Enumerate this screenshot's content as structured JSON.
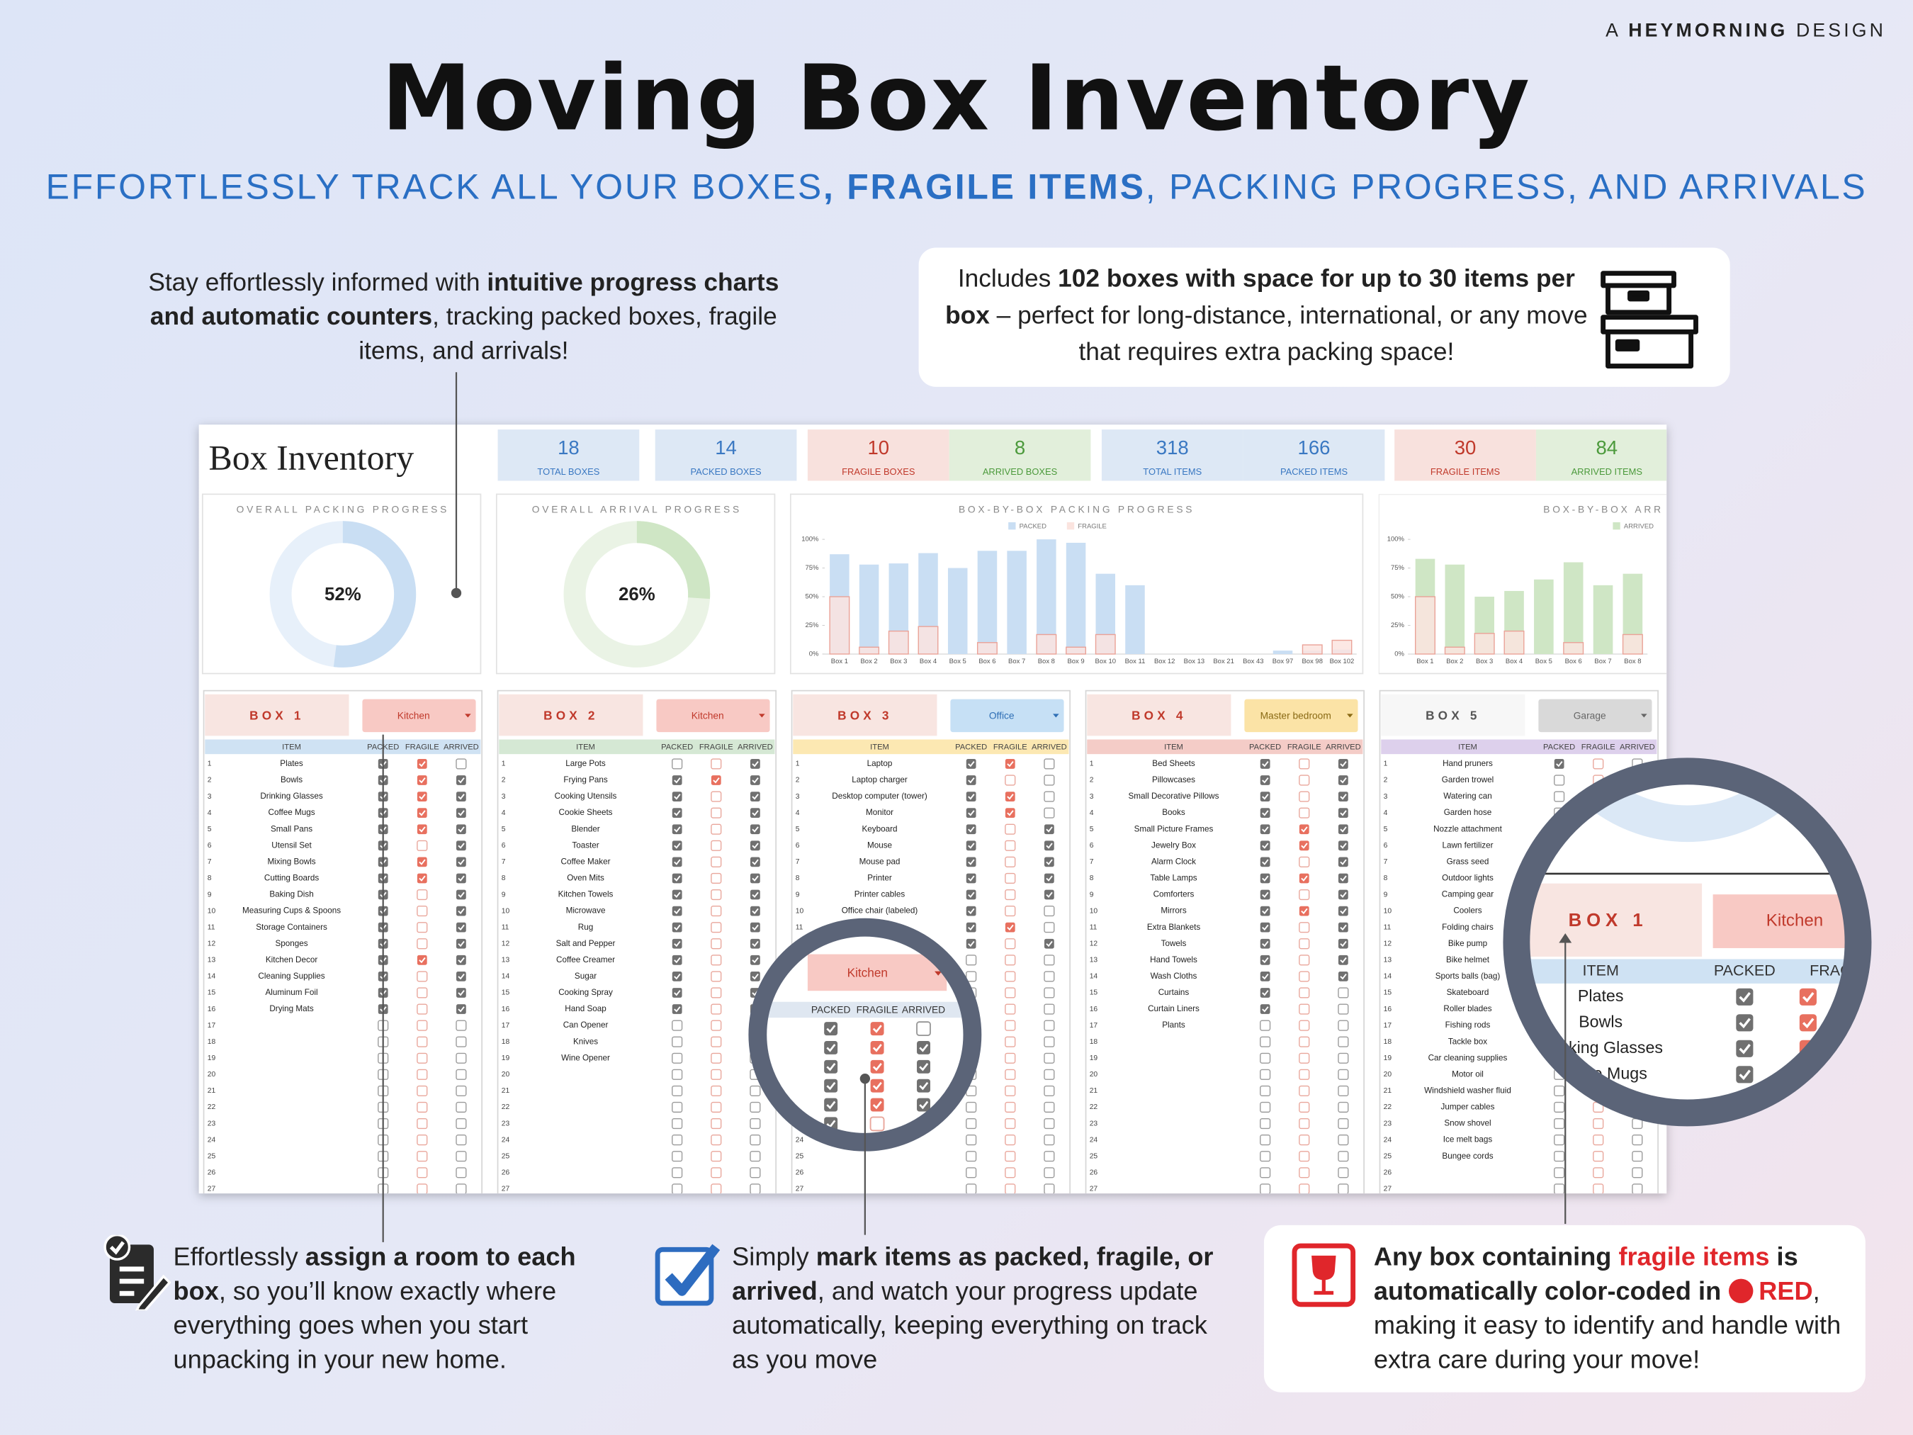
{
  "header": {
    "brand": [
      {
        "text": "A ",
        "style": "normal"
      },
      {
        "text": "HEYMORNING",
        "style": "bold"
      },
      {
        "text": " DESIGN",
        "style": "normal"
      }
    ],
    "title": "Moving Box Inventory",
    "subtitle": [
      {
        "text": "EFFORTLESSLY TRACK ALL YOUR BOXES",
        "style": "normal"
      },
      {
        "text": ", FRAGILE ITEMS",
        "style": "bold"
      },
      {
        "text": ", PACKING PROGRESS, AND ARRIVALS",
        "style": "normal"
      }
    ]
  },
  "callouts": [
    {
      "segments": [
        {
          "text": "Stay effortlessly informed with ",
          "style": "normal"
        },
        {
          "text": "intuitive progress charts and automatic counters",
          "style": "bold"
        },
        {
          "text": ", tracking packed boxes, fragile items, and arrivals!",
          "style": "normal"
        }
      ]
    },
    {
      "segments": [
        {
          "text": "Includes ",
          "style": "normal"
        },
        {
          "text": "102 boxes with space for up to 30 items per box",
          "style": "bold"
        },
        {
          "text": " – perfect for long-distance, international, or any move that requires extra packing space!",
          "style": "normal"
        }
      ]
    },
    {
      "segments": [
        {
          "text": "Effortlessly ",
          "style": "normal"
        },
        {
          "text": "assign a room to each box",
          "style": "bold"
        },
        {
          "text": ", so you’ll know exactly where everything goes when you start unpacking in your new home.",
          "style": "normal"
        }
      ]
    },
    {
      "segments": [
        {
          "text": "Simply ",
          "style": "normal"
        },
        {
          "text": "mark items as packed, fragile, or arrived",
          "style": "bold"
        },
        {
          "text": ", and watch your progress update automatically, keeping everything on track as you move",
          "style": "normal"
        }
      ]
    },
    {
      "segments": [
        {
          "text": "Any box containing ",
          "style": "bold"
        },
        {
          "text": "fragile items",
          "style": "red"
        },
        {
          "text": " is automatically color-coded in ",
          "style": "bold"
        },
        {
          "text": "RED",
          "style": "red-dot"
        },
        {
          "text": ", making it easy to identify and handle with extra care during your move!",
          "style": "normal"
        }
      ]
    }
  ],
  "sheet": {
    "title": "Box Inventory",
    "stats": [
      {
        "value": 18,
        "label": "TOTAL BOXES",
        "color": "#3a78c2",
        "bg": "#dde8f5"
      },
      {
        "value": 14,
        "label": "PACKED BOXES",
        "color": "#3a78c2",
        "bg": "#dde8f5"
      },
      {
        "value": 10,
        "label": "FRAGILE BOXES",
        "color": "#c0392b",
        "bg": "#f8e1dd"
      },
      {
        "value": 8,
        "label": "ARRIVED BOXES",
        "color": "#4c9a3c",
        "bg": "#e2efdb"
      },
      {
        "value": 318,
        "label": "TOTAL ITEMS",
        "color": "#3a78c2",
        "bg": "#dde8f5"
      },
      {
        "value": 166,
        "label": "PACKED ITEMS",
        "color": "#3a78c2",
        "bg": "#dde8f5"
      },
      {
        "value": 30,
        "label": "FRAGILE ITEMS",
        "color": "#c0392b",
        "bg": "#f8e1dd"
      },
      {
        "value": 84,
        "label": "ARRIVED ITEMS",
        "color": "#4c9a3c",
        "bg": "#e2efdb"
      }
    ],
    "progress": [
      {
        "type": "donut",
        "title": "OVERALL PACKING PROGRESS",
        "value": 52,
        "value_label": "52%",
        "color": "#c9def3",
        "track": "#e7f0fa"
      },
      {
        "type": "donut",
        "title": "OVERALL ARRIVAL PROGRESS",
        "value": 26,
        "value_label": "26%",
        "color": "#cfe6c5",
        "track": "#eaf3e5"
      }
    ],
    "charts": [
      {
        "type": "bar",
        "title": "BOX-BY-BOX PACKING PROGRESS",
        "categories": [
          "Box 1",
          "Box 2",
          "Box 3",
          "Box 4",
          "Box 5",
          "Box 6",
          "Box 7",
          "Box 8",
          "Box 9",
          "Box 10",
          "Box 11",
          "Box 12",
          "Box 13",
          "Box 21",
          "Box 43",
          "Box 97",
          "Box 98",
          "Box 102"
        ],
        "series": [
          {
            "name": "PACKED",
            "color": "#c9def3",
            "values": [
              87,
              78,
              79,
              88,
              75,
              90,
              90,
              100,
              97,
              70,
              60,
              0,
              0,
              0,
              0,
              3,
              3,
              4
            ]
          },
          {
            "name": "FRAGILE",
            "color": "#fbe4df",
            "values": [
              50,
              6,
              20,
              24,
              0,
              10,
              0,
              17,
              6,
              17,
              0,
              0,
              0,
              0,
              0,
              0,
              8,
              12
            ]
          }
        ],
        "ylim": [
          0,
          100
        ],
        "yticks": [
          {
            "value": 0,
            "label": "0%"
          },
          {
            "value": 25,
            "label": "25%"
          },
          {
            "value": 50,
            "label": "50%"
          },
          {
            "value": 75,
            "label": "75%"
          },
          {
            "value": 100,
            "label": "100%"
          }
        ]
      },
      {
        "type": "bar",
        "title": "BOX-BY-BOX ARR",
        "categories": [
          "Box 1",
          "Box 2",
          "Box 3",
          "Box 4",
          "Box 5",
          "Box 6",
          "Box 7",
          "Box 8"
        ],
        "series": [
          {
            "name": "ARRIVED",
            "color": "#cfe6c5",
            "values": [
              83,
              78,
              50,
              55,
              65,
              80,
              60,
              70
            ]
          },
          {
            "color": "#fbe4df",
            "values": [
              50,
              6,
              18,
              20,
              0,
              10,
              0,
              17
            ]
          }
        ],
        "ylim": [
          0,
          100
        ],
        "yticks": [
          {
            "value": 0,
            "label": "0%"
          },
          {
            "value": 25,
            "label": "25%"
          },
          {
            "value": 50,
            "label": "50%"
          },
          {
            "value": 75,
            "label": "75%"
          },
          {
            "value": 100,
            "label": "100%"
          }
        ]
      }
    ],
    "columns": [
      "ITEM",
      "PACKED",
      "FRAGILE",
      "ARRIVED"
    ],
    "row_numbers": [
      1,
      2,
      3,
      4,
      5,
      6,
      7,
      8,
      9,
      10,
      11,
      12,
      13,
      14,
      15,
      16,
      17,
      18,
      19,
      20,
      21,
      22,
      23,
      24,
      25,
      26,
      27
    ],
    "boxes": [
      {
        "title": "BOX 1",
        "room": "Kitchen",
        "title_color": "#c0392b",
        "title_bg": "#f8e5e1",
        "room_bg": "#f8c9c4",
        "room_color": "#c0392b",
        "header_bg": "#cfe2f3",
        "items": [
          "Plates",
          "Bowls",
          "Drinking Glasses",
          "Coffee Mugs",
          "Small Pans",
          "Utensil Set",
          "Mixing Bowls",
          "Cutting Boards",
          "Baking Dish",
          "Measuring Cups & Spoons",
          "Storage Containers",
          "Sponges",
          "Kitchen Decor",
          "Cleaning Supplies",
          "Aluminum Foil",
          "Drying Mats"
        ],
        "packed": [
          true,
          true,
          true,
          true,
          true,
          true,
          true,
          true,
          true,
          true,
          true,
          true,
          true,
          true,
          true,
          true,
          false,
          false,
          false,
          false,
          false,
          false,
          false,
          false,
          false,
          false,
          false
        ],
        "fragile": [
          true,
          true,
          true,
          true,
          true,
          false,
          true,
          true,
          false,
          false,
          false,
          false,
          true,
          false,
          false,
          false,
          false,
          false,
          false,
          false,
          false,
          false,
          false,
          false,
          false,
          false,
          false
        ],
        "arrived": [
          false,
          true,
          true,
          true,
          true,
          true,
          true,
          true,
          true,
          true,
          true,
          true,
          true,
          true,
          true,
          true,
          false,
          false,
          false,
          false,
          false,
          false,
          false,
          false,
          false,
          false,
          false
        ]
      },
      {
        "title": "BOX 2",
        "room": "Kitchen",
        "title_color": "#c0392b",
        "title_bg": "#f8e5e1",
        "room_bg": "#f8c9c4",
        "room_color": "#c0392b",
        "header_bg": "#d5e8d4",
        "items": [
          "Large Pots",
          "Frying Pans",
          "Cooking Utensils",
          "Cookie Sheets",
          "Blender",
          "Toaster",
          "Coffee Maker",
          "Oven Mits",
          "Kitchen Towels",
          "Microwave",
          "Rug",
          "Salt and Pepper",
          "Coffee Creamer",
          "Sugar",
          "Cooking Spray",
          "Hand Soap",
          "Can Opener",
          "Knives",
          "Wine Opener"
        ],
        "packed": [
          false,
          true,
          true,
          true,
          true,
          true,
          true,
          true,
          true,
          true,
          true,
          true,
          true,
          true,
          true,
          true,
          false,
          false,
          false,
          false,
          false,
          false,
          false,
          false,
          false,
          false,
          false
        ],
        "fragile": [
          false,
          true,
          false,
          false,
          false,
          false,
          false,
          false,
          false,
          false,
          false,
          false,
          false,
          false,
          false,
          false,
          false,
          false,
          false,
          false,
          false,
          false,
          false,
          false,
          false,
          false,
          false
        ],
        "arrived": [
          true,
          true,
          true,
          true,
          true,
          true,
          true,
          true,
          true,
          true,
          true,
          true,
          true,
          true,
          true,
          true,
          false,
          false,
          false,
          false,
          false,
          false,
          false,
          false,
          false,
          false,
          false
        ]
      },
      {
        "title": "BOX 3",
        "room": "Office",
        "title_color": "#c0392b",
        "title_bg": "#f8e5e1",
        "room_bg": "#c6e0f5",
        "room_color": "#2f6fb5",
        "header_bg": "#fce8b2",
        "items": [
          "Laptop",
          "Laptop charger",
          "Desktop computer (tower)",
          "Monitor",
          "Keyboard",
          "Mouse",
          "Mouse pad",
          "Printer",
          "Printer cables",
          "Office chair (labeled)"
        ],
        "packed": [
          true,
          true,
          true,
          true,
          true,
          true,
          true,
          true,
          true,
          true,
          true,
          true,
          false,
          false,
          false,
          false,
          false,
          false,
          false,
          false,
          false,
          false,
          false,
          false,
          false,
          false,
          false
        ],
        "fragile": [
          true,
          false,
          true,
          true,
          false,
          false,
          false,
          false,
          false,
          false,
          true,
          false,
          false,
          false,
          false,
          false,
          false,
          false,
          false,
          false,
          false,
          false,
          false,
          false,
          false,
          false,
          false
        ],
        "arrived": [
          false,
          false,
          false,
          false,
          true,
          true,
          true,
          true,
          true,
          false,
          false,
          true,
          false,
          false,
          false,
          false,
          false,
          false,
          false,
          false,
          false,
          false,
          false,
          false,
          false,
          false,
          false
        ]
      },
      {
        "title": "BOX 4",
        "room": "Master bedroom",
        "title_color": "#c0392b",
        "title_bg": "#f8e5e1",
        "room_bg": "#fbe3a6",
        "room_color": "#8a6a14",
        "header_bg": "#f4ccc7",
        "items": [
          "Bed Sheets",
          "Pillowcases",
          "Small Decorative Pillows",
          "Books",
          "Small Picture Frames",
          "Jewelry Box",
          "Alarm Clock",
          "Table Lamps",
          "Comforters",
          "Mirrors",
          "Extra Blankets",
          "Towels",
          "Hand Towels",
          "Wash Cloths",
          "Curtains",
          "Curtain Liners",
          "Plants"
        ],
        "packed": [
          true,
          true,
          true,
          true,
          true,
          true,
          true,
          true,
          true,
          true,
          true,
          true,
          true,
          true,
          true,
          true,
          false,
          false,
          false,
          false,
          false,
          false,
          false,
          false,
          false,
          false,
          false
        ],
        "fragile": [
          false,
          false,
          false,
          false,
          true,
          true,
          false,
          true,
          false,
          true,
          false,
          false,
          false,
          false,
          false,
          false,
          false,
          false,
          false,
          false,
          false,
          false,
          false,
          false,
          false,
          false,
          false
        ],
        "arrived": [
          true,
          true,
          true,
          true,
          true,
          true,
          true,
          true,
          true,
          true,
          true,
          true,
          true,
          true,
          false,
          false,
          false,
          false,
          false,
          false,
          false,
          false,
          false,
          false,
          false,
          false,
          false
        ]
      },
      {
        "title": "BOX 5",
        "room": "Garage",
        "title_color": "#555555",
        "title_bg": "#f7f7f7",
        "room_bg": "#d9d9d9",
        "room_color": "#666666",
        "header_bg": "#ddd0ec",
        "items": [
          "Hand pruners",
          "Garden trowel",
          "Watering can",
          "Garden hose",
          "Nozzle attachment",
          "Lawn fertilizer",
          "Grass seed",
          "Outdoor lights",
          "Camping gear",
          "Coolers",
          "Folding chairs",
          "Bike pump",
          "Bike helmet",
          "Sports balls (bag)",
          "Skateboard",
          "Roller blades",
          "Fishing rods",
          "Tackle box",
          "Car cleaning supplies",
          "Motor oil",
          "Windshield washer fluid",
          "Jumper cables",
          "Snow shovel",
          "Ice melt bags",
          "Bungee cords"
        ],
        "packed": [
          true,
          false,
          false,
          false,
          false,
          false,
          false,
          false,
          false,
          false,
          false,
          false,
          false,
          false,
          false,
          false,
          false,
          false,
          false,
          false,
          false,
          false,
          false,
          false,
          false,
          false,
          false
        ],
        "fragile": [
          false,
          false,
          false,
          false,
          false,
          false,
          false,
          false,
          false,
          false,
          false,
          false,
          false,
          false,
          false,
          false,
          false,
          false,
          false,
          false,
          false,
          false,
          false,
          false,
          false,
          false,
          false
        ],
        "arrived": [
          false,
          false,
          false,
          false,
          false,
          false,
          false,
          false,
          false,
          false,
          false,
          false,
          false,
          false,
          false,
          false,
          false,
          false,
          false,
          false,
          false,
          false,
          false,
          false,
          false,
          false,
          false
        ]
      }
    ]
  }
}
